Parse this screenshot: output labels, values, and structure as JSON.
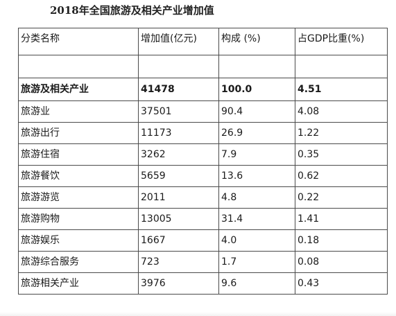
{
  "title": "2018年全国旅游及相关产业增加值",
  "table": {
    "headers": [
      "分类名称",
      "增加值(亿元)",
      "构成 (%)",
      "占GDP比重(%)"
    ],
    "total": [
      "旅游及相关产业",
      "41478",
      "100.0",
      "4.51"
    ],
    "rows": [
      [
        "旅游业",
        "37501",
        "90.4",
        "4.08"
      ],
      [
        "旅游出行",
        "11173",
        "26.9",
        "1.22"
      ],
      [
        "旅游住宿",
        "3262",
        "7.9",
        "0.35"
      ],
      [
        "旅游餐饮",
        "5659",
        "13.6",
        "0.62"
      ],
      [
        "旅游游览",
        "2011",
        "4.8",
        "0.22"
      ],
      [
        "旅游购物",
        "13005",
        "31.4",
        "1.41"
      ],
      [
        "旅游娱乐",
        "1667",
        "4.0",
        "0.18"
      ],
      [
        "旅游综合服务",
        "723",
        "1.7",
        "0.08"
      ],
      [
        "旅游相关产业",
        "3976",
        "9.6",
        "0.43"
      ]
    ]
  }
}
